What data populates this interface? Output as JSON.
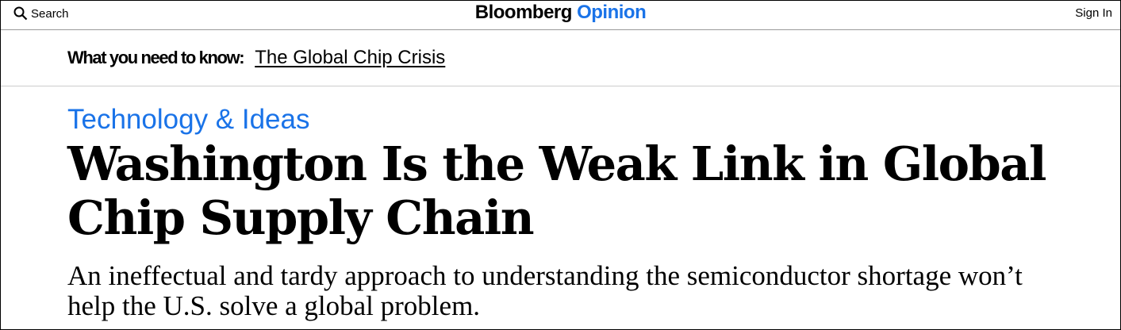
{
  "header": {
    "search": "Search",
    "brand": "Bloomberg",
    "brand_sub": "Opinion",
    "sign_in": "Sign In"
  },
  "banner": {
    "label": "What you need to know:",
    "link": "The Global Chip Crisis"
  },
  "article": {
    "section": "Technology & Ideas",
    "headline": "Washington Is the Weak Link in Global Chip Supply Chain",
    "dek": "An ineffectual and tardy approach to understanding the semiconductor shortage won’t help the U.S. solve a global problem."
  }
}
